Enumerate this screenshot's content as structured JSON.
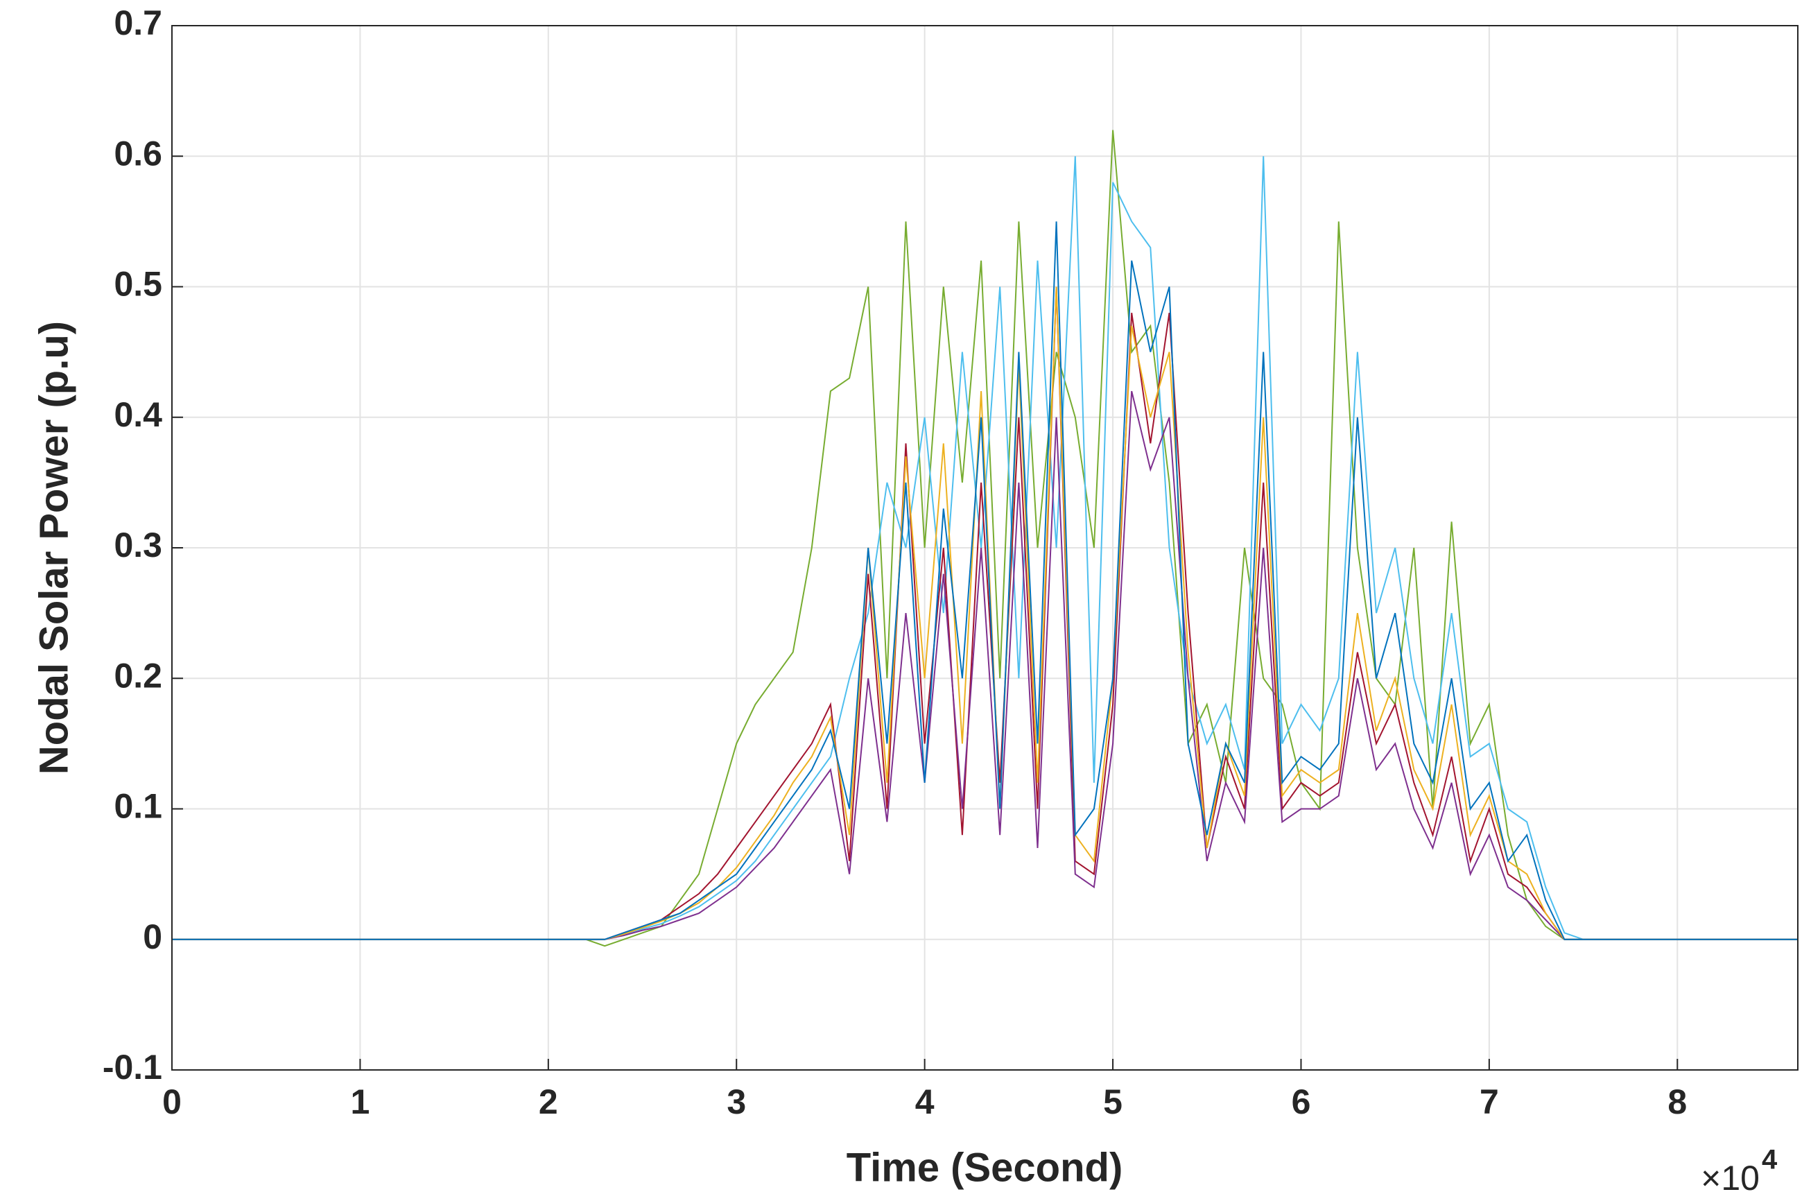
{
  "chart_data": {
    "type": "line",
    "xlabel": "Time (Second)",
    "ylabel": "Nodal Solar Power (p.u)",
    "x_multiplier": "×10",
    "x_exponent": "4",
    "xlim": [
      0,
      86400
    ],
    "ylim": [
      -0.1,
      0.7
    ],
    "xticks": [
      {
        "value": 0,
        "label": "0"
      },
      {
        "value": 10000,
        "label": "1"
      },
      {
        "value": 20000,
        "label": "2"
      },
      {
        "value": 30000,
        "label": "3"
      },
      {
        "value": 40000,
        "label": "4"
      },
      {
        "value": 50000,
        "label": "5"
      },
      {
        "value": 60000,
        "label": "6"
      },
      {
        "value": 70000,
        "label": "7"
      },
      {
        "value": 80000,
        "label": "8"
      }
    ],
    "yticks": [
      -0.1,
      0,
      0.1,
      0.2,
      0.3,
      0.4,
      0.5,
      0.6,
      0.7
    ],
    "grid": true,
    "x": [
      0,
      22000,
      23000,
      24000,
      25000,
      26000,
      27000,
      28000,
      29000,
      30000,
      31000,
      32000,
      33000,
      34000,
      35000,
      36000,
      37000,
      38000,
      39000,
      40000,
      41000,
      42000,
      43000,
      44000,
      45000,
      46000,
      47000,
      48000,
      49000,
      50000,
      51000,
      52000,
      53000,
      54000,
      55000,
      56000,
      57000,
      58000,
      59000,
      60000,
      61000,
      62000,
      63000,
      64000,
      65000,
      66000,
      67000,
      68000,
      69000,
      70000,
      71000,
      72000,
      73000,
      74000,
      75000,
      76000,
      86400
    ],
    "series": [
      {
        "color": "#77ac30",
        "values": [
          0,
          0,
          -0.005,
          0,
          0.005,
          0.01,
          0.03,
          0.05,
          0.1,
          0.15,
          0.18,
          0.2,
          0.22,
          0.3,
          0.42,
          0.43,
          0.5,
          0.2,
          0.55,
          0.3,
          0.5,
          0.35,
          0.52,
          0.2,
          0.55,
          0.3,
          0.45,
          0.4,
          0.3,
          0.62,
          0.45,
          0.47,
          0.35,
          0.15,
          0.18,
          0.12,
          0.3,
          0.2,
          0.18,
          0.12,
          0.1,
          0.55,
          0.3,
          0.2,
          0.18,
          0.3,
          0.1,
          0.32,
          0.15,
          0.18,
          0.08,
          0.03,
          0.01,
          0,
          0,
          0,
          0
        ]
      },
      {
        "color": "#4dbeee",
        "values": [
          0,
          0,
          0,
          0.004,
          0.008,
          0.012,
          0.018,
          0.025,
          0.035,
          0.045,
          0.06,
          0.08,
          0.1,
          0.12,
          0.14,
          0.2,
          0.25,
          0.35,
          0.3,
          0.4,
          0.25,
          0.45,
          0.3,
          0.5,
          0.2,
          0.52,
          0.3,
          0.6,
          0.12,
          0.58,
          0.55,
          0.53,
          0.3,
          0.2,
          0.15,
          0.18,
          0.13,
          0.6,
          0.15,
          0.18,
          0.16,
          0.2,
          0.45,
          0.25,
          0.3,
          0.2,
          0.15,
          0.25,
          0.14,
          0.15,
          0.1,
          0.09,
          0.04,
          0.005,
          0,
          0,
          0
        ]
      },
      {
        "color": "#a2142f",
        "values": [
          0,
          0,
          0,
          0.005,
          0.01,
          0.015,
          0.025,
          0.035,
          0.05,
          0.07,
          0.09,
          0.11,
          0.13,
          0.15,
          0.18,
          0.06,
          0.28,
          0.1,
          0.38,
          0.15,
          0.3,
          0.08,
          0.35,
          0.12,
          0.4,
          0.1,
          0.5,
          0.06,
          0.05,
          0.18,
          0.48,
          0.38,
          0.48,
          0.25,
          0.07,
          0.14,
          0.1,
          0.35,
          0.1,
          0.12,
          0.11,
          0.12,
          0.22,
          0.15,
          0.18,
          0.12,
          0.08,
          0.14,
          0.06,
          0.1,
          0.05,
          0.04,
          0.02,
          0,
          0,
          0,
          0
        ]
      },
      {
        "color": "#7e2f8e",
        "values": [
          0,
          0,
          0,
          0.003,
          0.007,
          0.01,
          0.015,
          0.02,
          0.03,
          0.04,
          0.055,
          0.07,
          0.09,
          0.11,
          0.13,
          0.05,
          0.2,
          0.09,
          0.25,
          0.12,
          0.28,
          0.1,
          0.3,
          0.08,
          0.35,
          0.07,
          0.4,
          0.05,
          0.04,
          0.15,
          0.42,
          0.36,
          0.4,
          0.2,
          0.06,
          0.12,
          0.09,
          0.3,
          0.09,
          0.1,
          0.1,
          0.11,
          0.2,
          0.13,
          0.15,
          0.1,
          0.07,
          0.12,
          0.05,
          0.08,
          0.04,
          0.03,
          0.015,
          0,
          0,
          0,
          0
        ]
      },
      {
        "color": "#edb120",
        "values": [
          0,
          0,
          0,
          0.004,
          0.009,
          0.014,
          0.02,
          0.028,
          0.04,
          0.055,
          0.075,
          0.095,
          0.12,
          0.14,
          0.17,
          0.08,
          0.3,
          0.12,
          0.37,
          0.2,
          0.38,
          0.15,
          0.42,
          0.1,
          0.44,
          0.12,
          0.5,
          0.08,
          0.06,
          0.2,
          0.47,
          0.4,
          0.45,
          0.22,
          0.07,
          0.15,
          0.11,
          0.4,
          0.11,
          0.13,
          0.12,
          0.13,
          0.25,
          0.16,
          0.2,
          0.13,
          0.1,
          0.18,
          0.08,
          0.11,
          0.06,
          0.05,
          0.02,
          0,
          0,
          0,
          0
        ]
      },
      {
        "color": "#0072bd",
        "values": [
          0,
          0,
          0,
          0.005,
          0.01,
          0.015,
          0.02,
          0.03,
          0.04,
          0.05,
          0.07,
          0.09,
          0.11,
          0.13,
          0.16,
          0.1,
          0.3,
          0.15,
          0.35,
          0.12,
          0.33,
          0.2,
          0.4,
          0.1,
          0.45,
          0.15,
          0.55,
          0.08,
          0.1,
          0.2,
          0.52,
          0.45,
          0.5,
          0.15,
          0.08,
          0.15,
          0.12,
          0.45,
          0.12,
          0.14,
          0.13,
          0.15,
          0.4,
          0.2,
          0.25,
          0.15,
          0.12,
          0.2,
          0.1,
          0.12,
          0.06,
          0.08,
          0.03,
          0,
          0,
          0,
          0
        ]
      }
    ]
  }
}
